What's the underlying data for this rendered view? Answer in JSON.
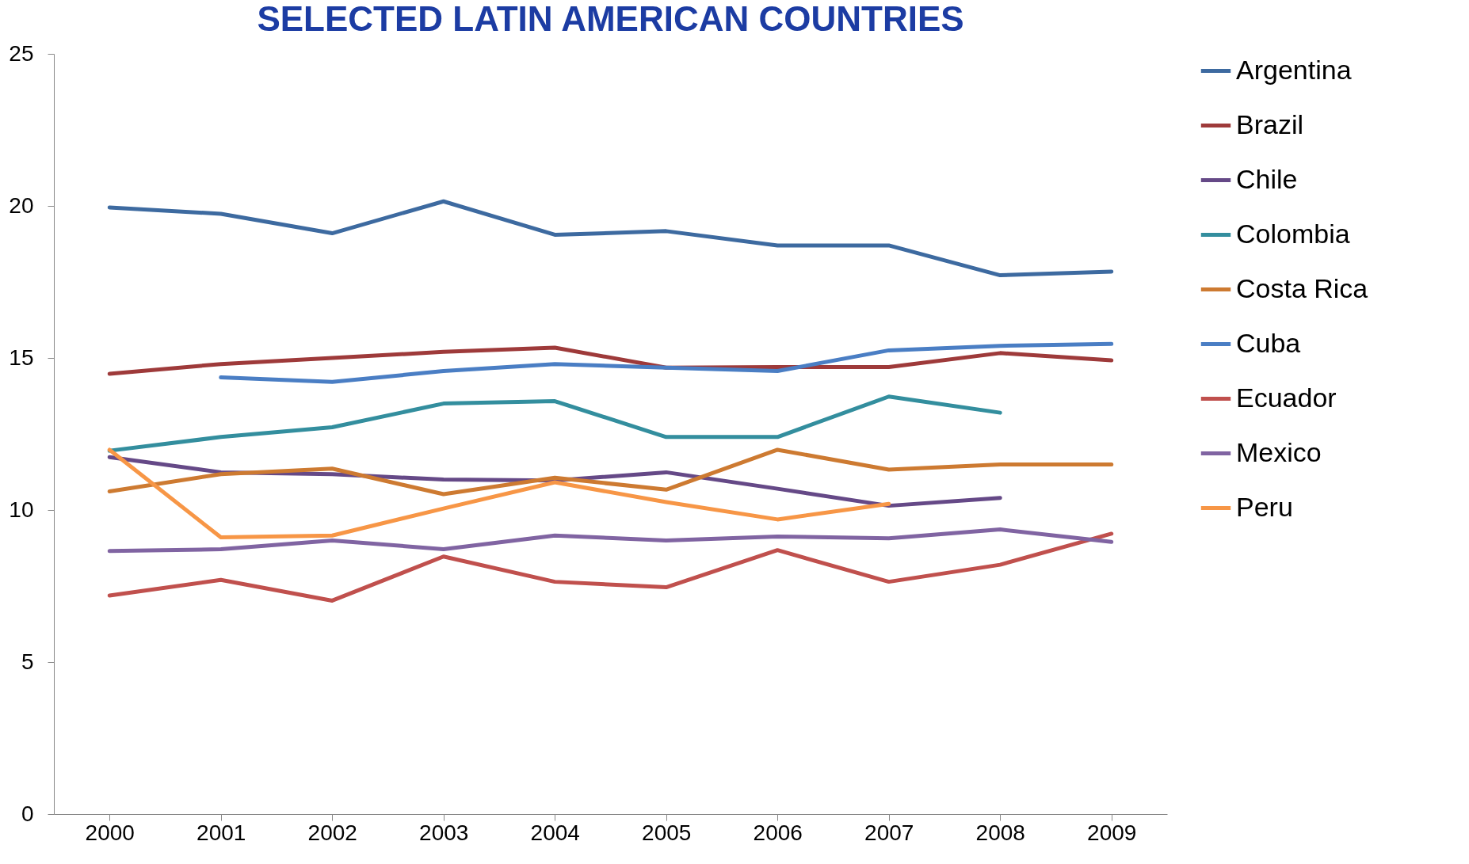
{
  "chart_data": {
    "type": "line",
    "title": "SELECTED LATIN AMERICAN COUNTRIES",
    "categories": [
      "2000",
      "2001",
      "2002",
      "2003",
      "2004",
      "2005",
      "2006",
      "2007",
      "2008",
      "2009"
    ],
    "ylim": [
      0,
      25
    ],
    "yticks": [
      0,
      5,
      10,
      15,
      20,
      25
    ],
    "grid": false,
    "legend": "right",
    "marker": "none",
    "series": [
      {
        "name": "Argentina",
        "color": "#3d6aa0",
        "values": [
          19.95,
          19.74,
          19.1,
          20.15,
          19.05,
          19.17,
          18.7,
          18.7,
          17.72,
          17.84
        ]
      },
      {
        "name": "Brazil",
        "color": "#9e3a3a",
        "values": [
          14.48,
          14.8,
          15.0,
          15.2,
          15.34,
          14.68,
          14.7,
          14.7,
          15.16,
          14.92
        ]
      },
      {
        "name": "Chile",
        "color": "#654987",
        "values": [
          11.74,
          11.24,
          11.18,
          11.0,
          10.97,
          11.24,
          10.7,
          10.14,
          10.4,
          null
        ]
      },
      {
        "name": "Colombia",
        "color": "#338e9e",
        "values": [
          11.95,
          12.4,
          12.72,
          13.5,
          13.58,
          12.4,
          12.4,
          13.73,
          13.2,
          null
        ]
      },
      {
        "name": "Costa Rica",
        "color": "#cd7a31",
        "values": [
          10.61,
          11.18,
          11.36,
          10.52,
          11.06,
          10.67,
          11.98,
          11.33,
          11.5,
          11.5
        ]
      },
      {
        "name": "Cuba",
        "color": "#4a7ec4",
        "values": [
          null,
          14.36,
          14.21,
          14.57,
          14.8,
          14.68,
          14.57,
          15.25,
          15.4,
          15.46
        ]
      },
      {
        "name": "Ecuador",
        "color": "#c0504d",
        "values": [
          7.19,
          7.7,
          7.02,
          8.47,
          7.64,
          7.46,
          8.68,
          7.64,
          8.2,
          9.22
        ]
      },
      {
        "name": "Mexico",
        "color": "#8064a2",
        "values": [
          8.65,
          8.71,
          9.0,
          8.71,
          9.16,
          9.0,
          9.13,
          9.07,
          9.36,
          8.95
        ]
      },
      {
        "name": "Peru",
        "color": "#f79646",
        "values": [
          11.98,
          9.1,
          9.16,
          10.05,
          10.91,
          10.26,
          9.69,
          10.2,
          null,
          null
        ]
      }
    ]
  }
}
